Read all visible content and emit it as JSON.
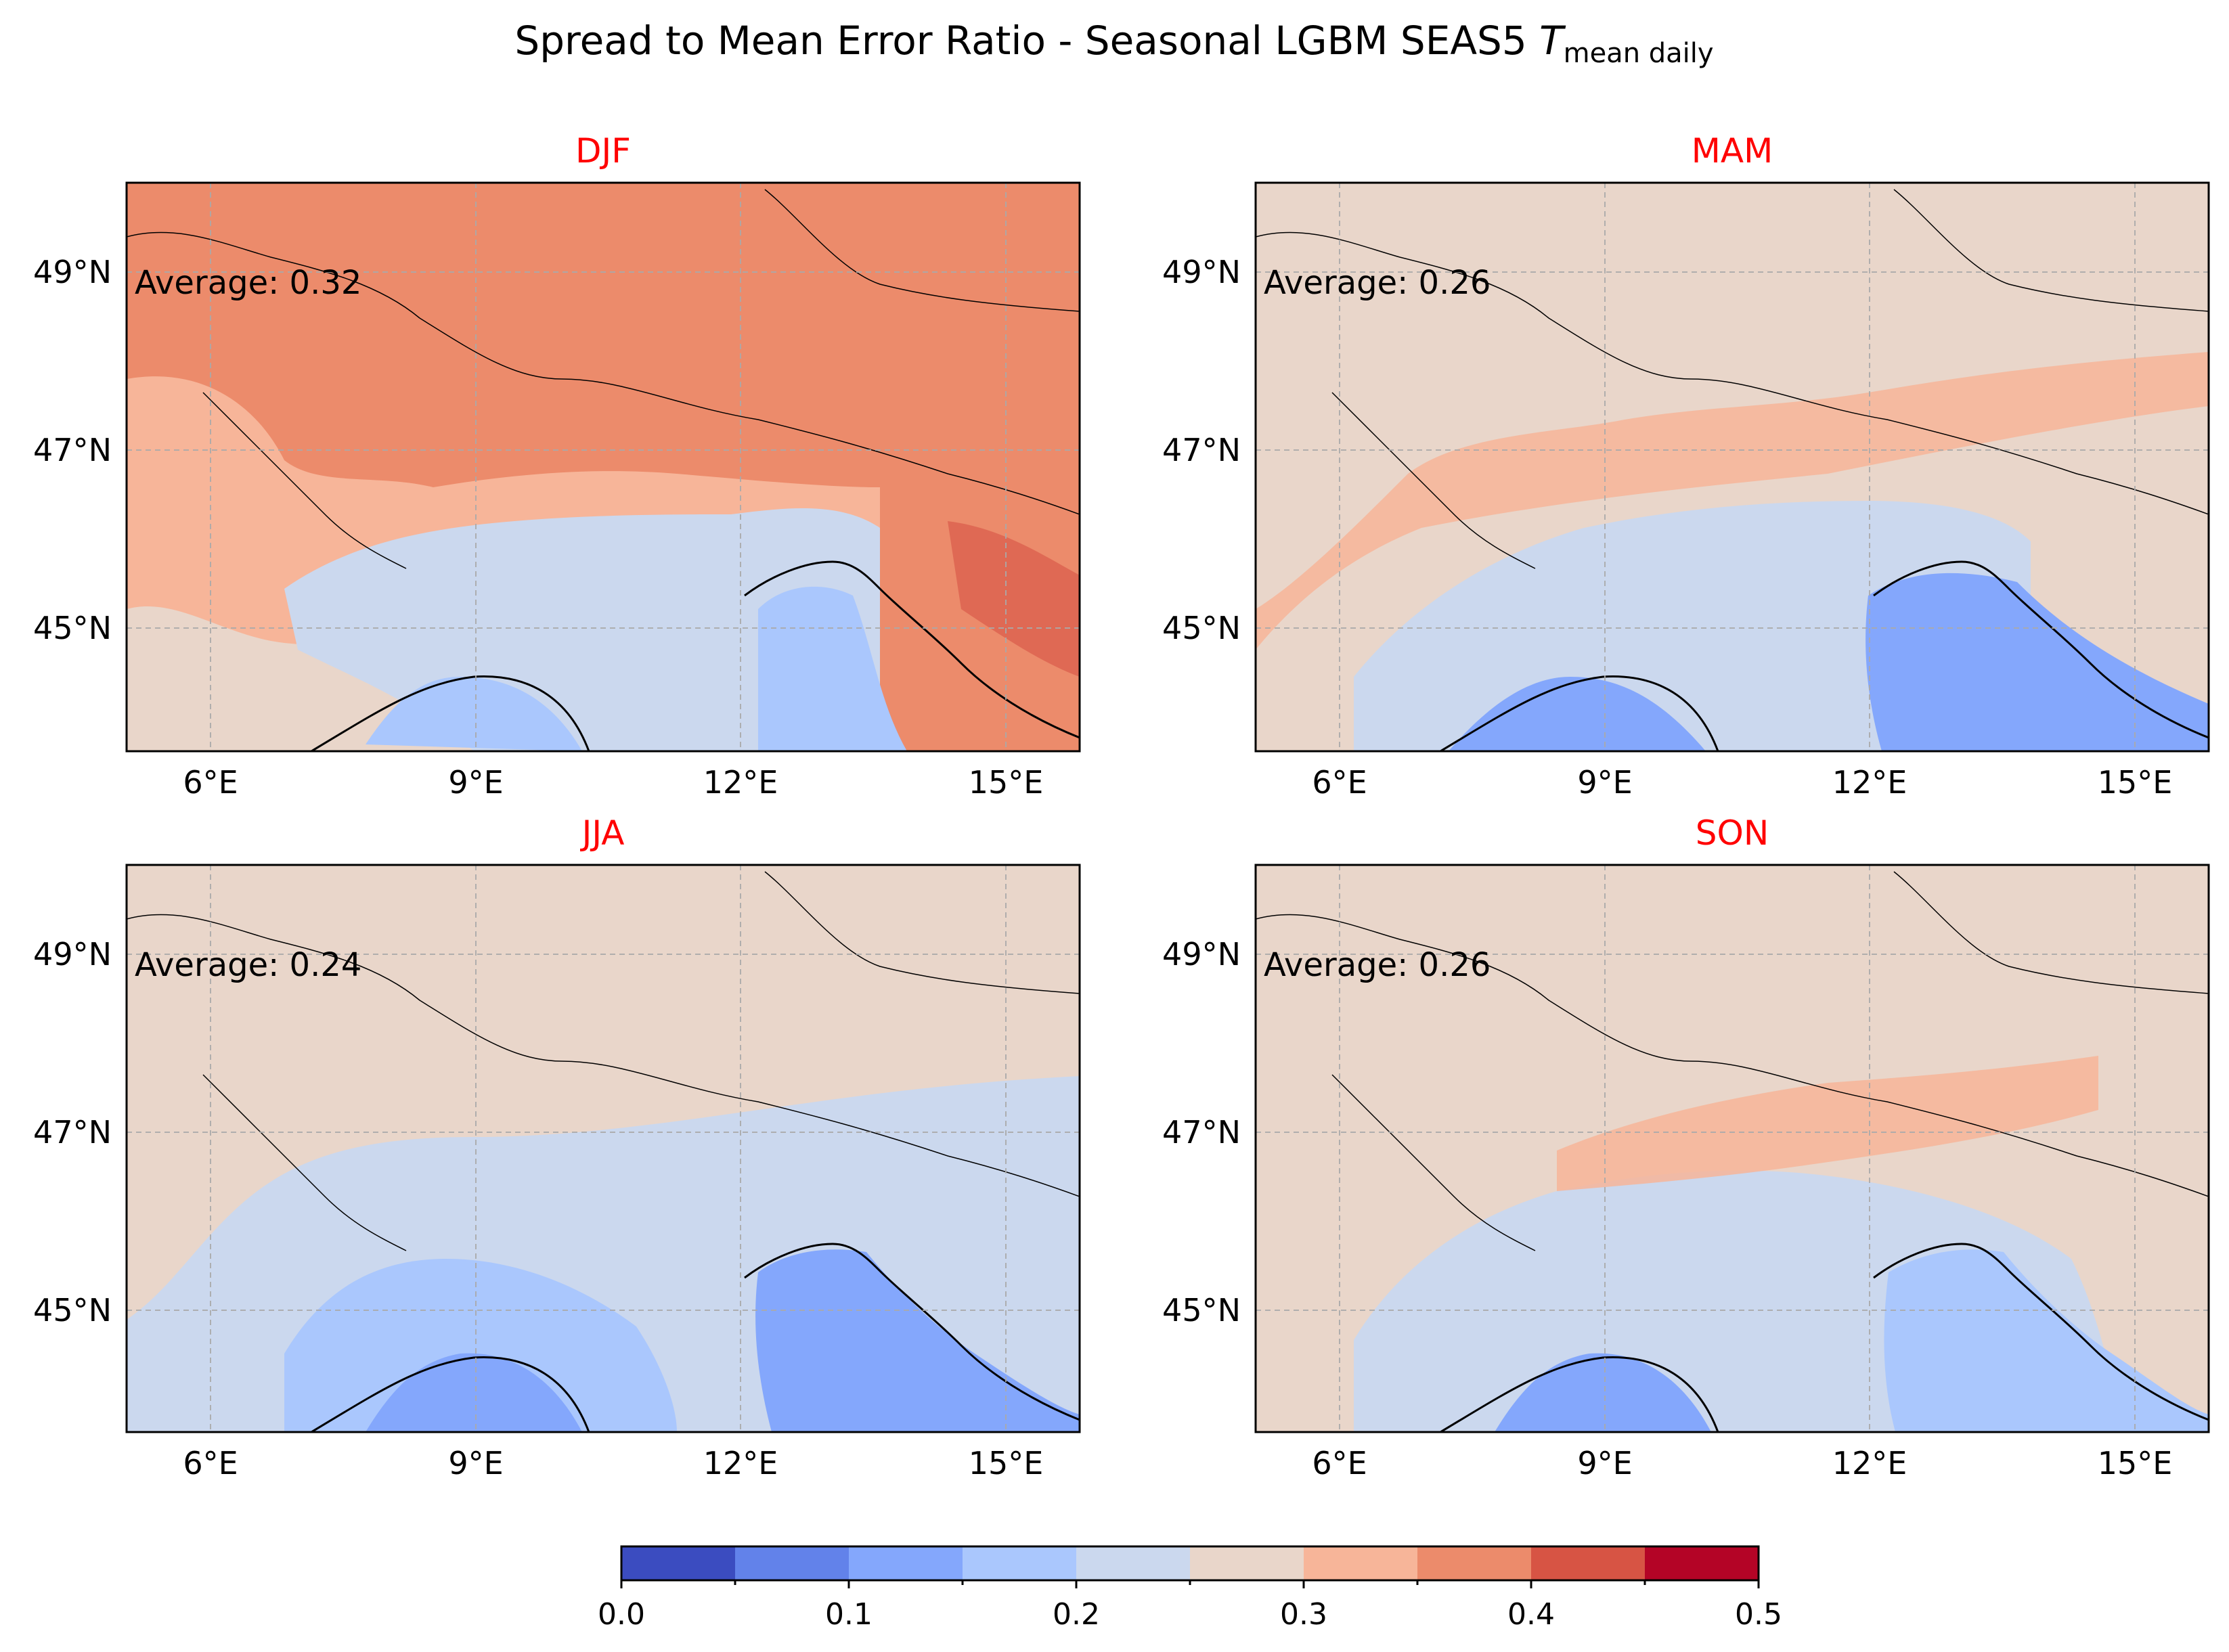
{
  "figure": {
    "title_main": "Spread to Mean Error Ratio - Seasonal LGBM SEAS5 ",
    "title_var": "T",
    "title_sub": "mean daily"
  },
  "colors": {
    "title_red": "#ff0000",
    "bins": [
      "#3b4cc0",
      "#6282ea",
      "#84a7fc",
      "#aac7fd",
      "#cbd8ee",
      "#e9d6ca",
      "#f7b599",
      "#ec8b6b",
      "#d75444",
      "#b40426"
    ],
    "land_frame": "#000000"
  },
  "axes": {
    "lon_ticks": [
      "6°E",
      "9°E",
      "12°E",
      "15°E"
    ],
    "lat_ticks": [
      "49°N",
      "47°N",
      "45°N"
    ]
  },
  "panels": [
    {
      "season": "DJF",
      "average_label": "Average: 0.32",
      "average": 0.32
    },
    {
      "season": "MAM",
      "average_label": "Average: 0.26",
      "average": 0.26
    },
    {
      "season": "JJA",
      "average_label": "Average: 0.24",
      "average": 0.24
    },
    {
      "season": "SON",
      "average_label": "Average: 0.26",
      "average": 0.26
    }
  ],
  "colorbar": {
    "min": 0.0,
    "max": 0.5,
    "step": 0.05,
    "tick_labels": [
      "0.0",
      "0.1",
      "0.2",
      "0.3",
      "0.4",
      "0.5"
    ]
  }
}
